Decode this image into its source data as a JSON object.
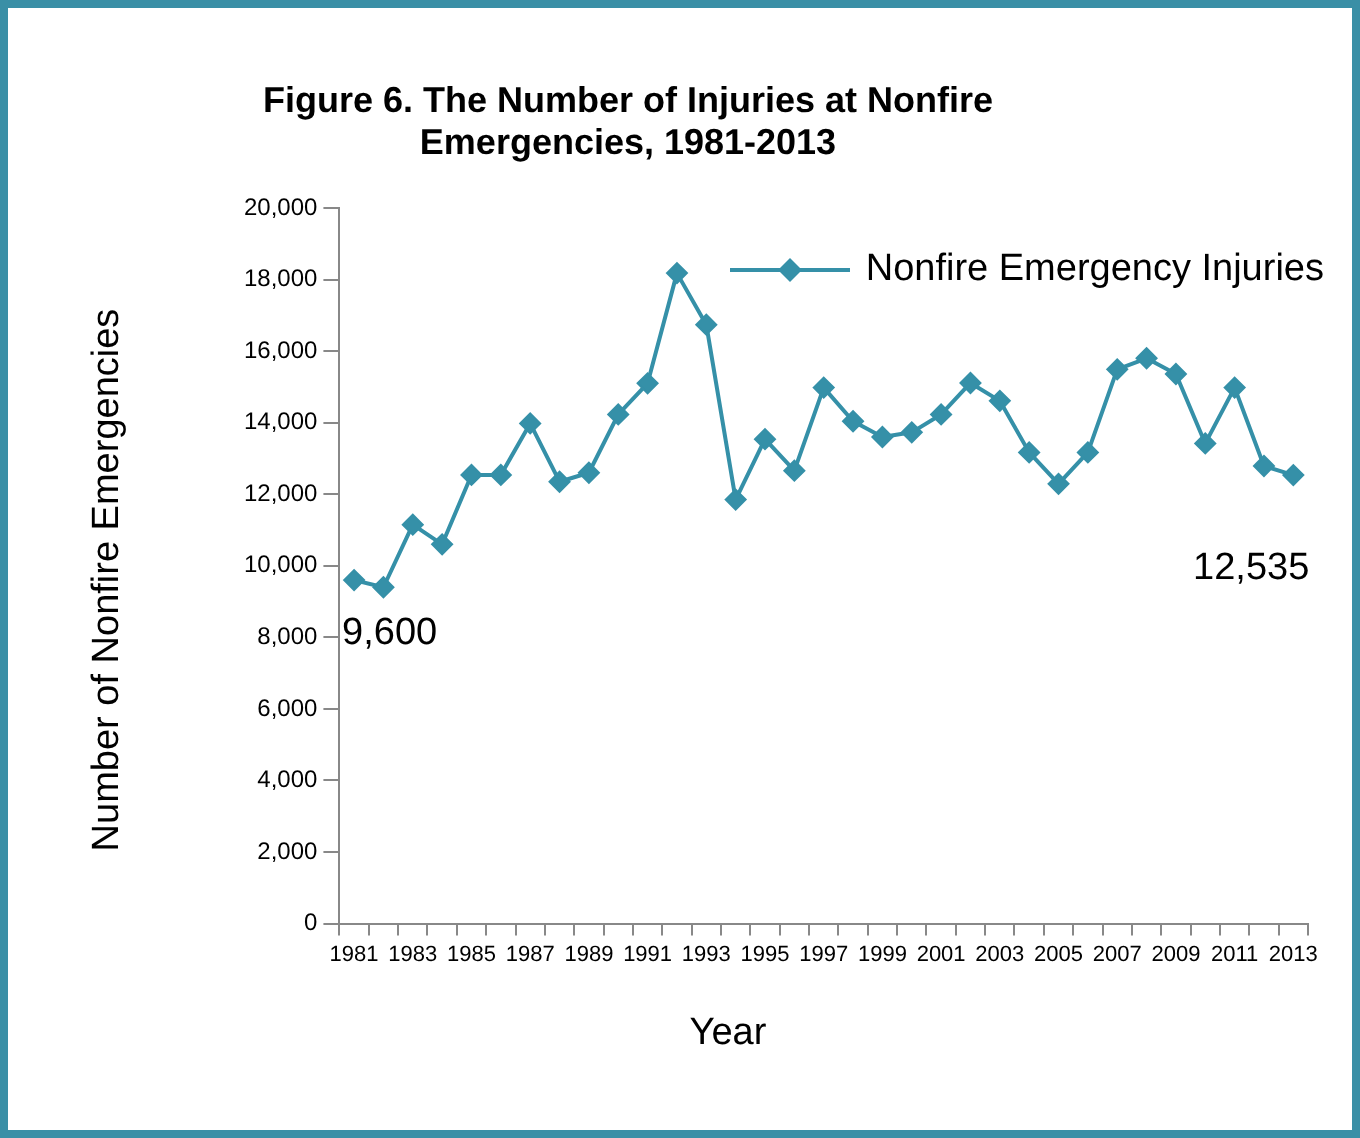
{
  "chart_data": {
    "type": "line",
    "title": "Figure 6.  The Number of Injuries at Nonfire Emergencies, 1981-2013",
    "xlabel": "Year",
    "ylabel": "Number of Nonfire Emergencies",
    "categories": [
      "1981",
      null,
      "1983",
      null,
      "1985",
      null,
      "1987",
      null,
      "1989",
      null,
      "1991",
      null,
      "1993",
      null,
      "1995",
      null,
      "1997",
      null,
      "1999",
      null,
      "2001",
      null,
      "2003",
      null,
      "2005",
      null,
      "2007",
      null,
      "2009",
      null,
      "2011",
      null,
      "2013"
    ],
    "series": [
      {
        "name": "Nonfire Emergency Injuries",
        "color": "#3590a8",
        "values": [
          9600,
          9400,
          11150,
          10600,
          12540,
          12540,
          13980,
          12350,
          12600,
          14230,
          15100,
          18180,
          16740,
          11850,
          13540,
          12660,
          14980,
          14040,
          13600,
          13730,
          14230,
          15110,
          14610,
          13170,
          12290,
          13170,
          15490,
          15800,
          15360,
          13420,
          14980,
          12790,
          12535
        ]
      }
    ],
    "ylim": [
      0,
      20000
    ],
    "yticks": [
      0,
      {
        "value": 2000,
        "label": "2,000"
      },
      {
        "value": 4000,
        "label": "4,000"
      },
      {
        "value": 6000,
        "label": "6,000"
      },
      {
        "value": 8000,
        "label": "8,000"
      },
      {
        "value": 10000,
        "label": "10,000"
      },
      {
        "value": 12000,
        "label": "12,000"
      },
      {
        "value": 14000,
        "label": "14,000"
      },
      {
        "value": 16000,
        "label": "16,000"
      },
      {
        "value": 18000,
        "label": "18,000"
      },
      {
        "value": 20000,
        "label": "20,000"
      }
    ],
    "annotations": [
      {
        "text": "9,600",
        "x": "1981",
        "y": 9600
      },
      {
        "text": "12,535",
        "x": "2013",
        "y": 12535
      }
    ],
    "grid": false,
    "legend": "top right",
    "marker": "diamond",
    "line_style": "solid"
  }
}
